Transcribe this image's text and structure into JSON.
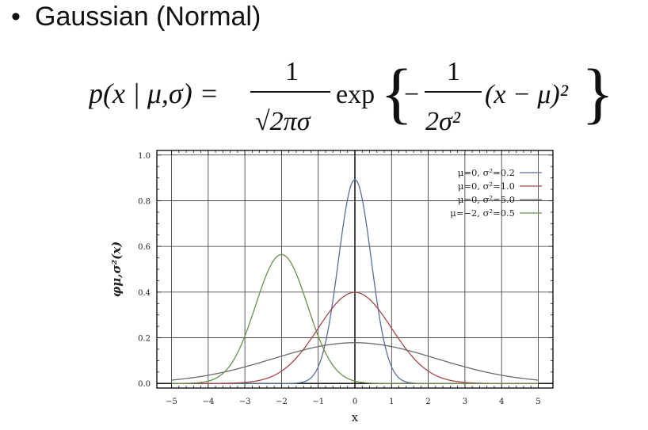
{
  "slide": {
    "bullet": "•",
    "title": "Gaussian (Normal)"
  },
  "formula": {
    "lhs": "p(x | μ,σ) =",
    "frac1_num": "1",
    "frac1_den": "√2πσ",
    "exp": "exp",
    "minus": "−",
    "frac2_num": "1",
    "frac2_den": "2σ²",
    "tail": "(x − μ)²"
  },
  "chart_data": {
    "type": "line",
    "title": "",
    "xlabel": "x",
    "ylabel": "φμ,σ²(x)",
    "xlim": [
      -5.4,
      5.4
    ],
    "ylim": [
      -0.02,
      1.02
    ],
    "xticks": [
      "−5",
      "−4",
      "−3",
      "−2",
      "−1",
      "0",
      "1",
      "2",
      "3",
      "4",
      "5"
    ],
    "xtick_values": [
      -5,
      -4,
      -3,
      -2,
      -1,
      0,
      1,
      2,
      3,
      4,
      5
    ],
    "yticks": [
      "0.0",
      "0.2",
      "0.4",
      "0.6",
      "0.8",
      "1.0"
    ],
    "ytick_values": [
      0,
      0.2,
      0.4,
      0.6,
      0.8,
      1.0
    ],
    "grid": true,
    "legend_position": "top-right",
    "series": [
      {
        "name": "μ=0,   σ²=0.2",
        "mu": 0,
        "variance": 0.2,
        "color": "#5a6f97"
      },
      {
        "name": "μ=0,   σ²=1.0",
        "mu": 0,
        "variance": 1.0,
        "color": "#a24a4a"
      },
      {
        "name": "μ=0,   σ²=5.0",
        "mu": 0,
        "variance": 5.0,
        "color": "#6a6a6a"
      },
      {
        "name": "μ=−2, σ²=0.5",
        "mu": -2,
        "variance": 0.5,
        "color": "#6d8e4e"
      }
    ]
  }
}
